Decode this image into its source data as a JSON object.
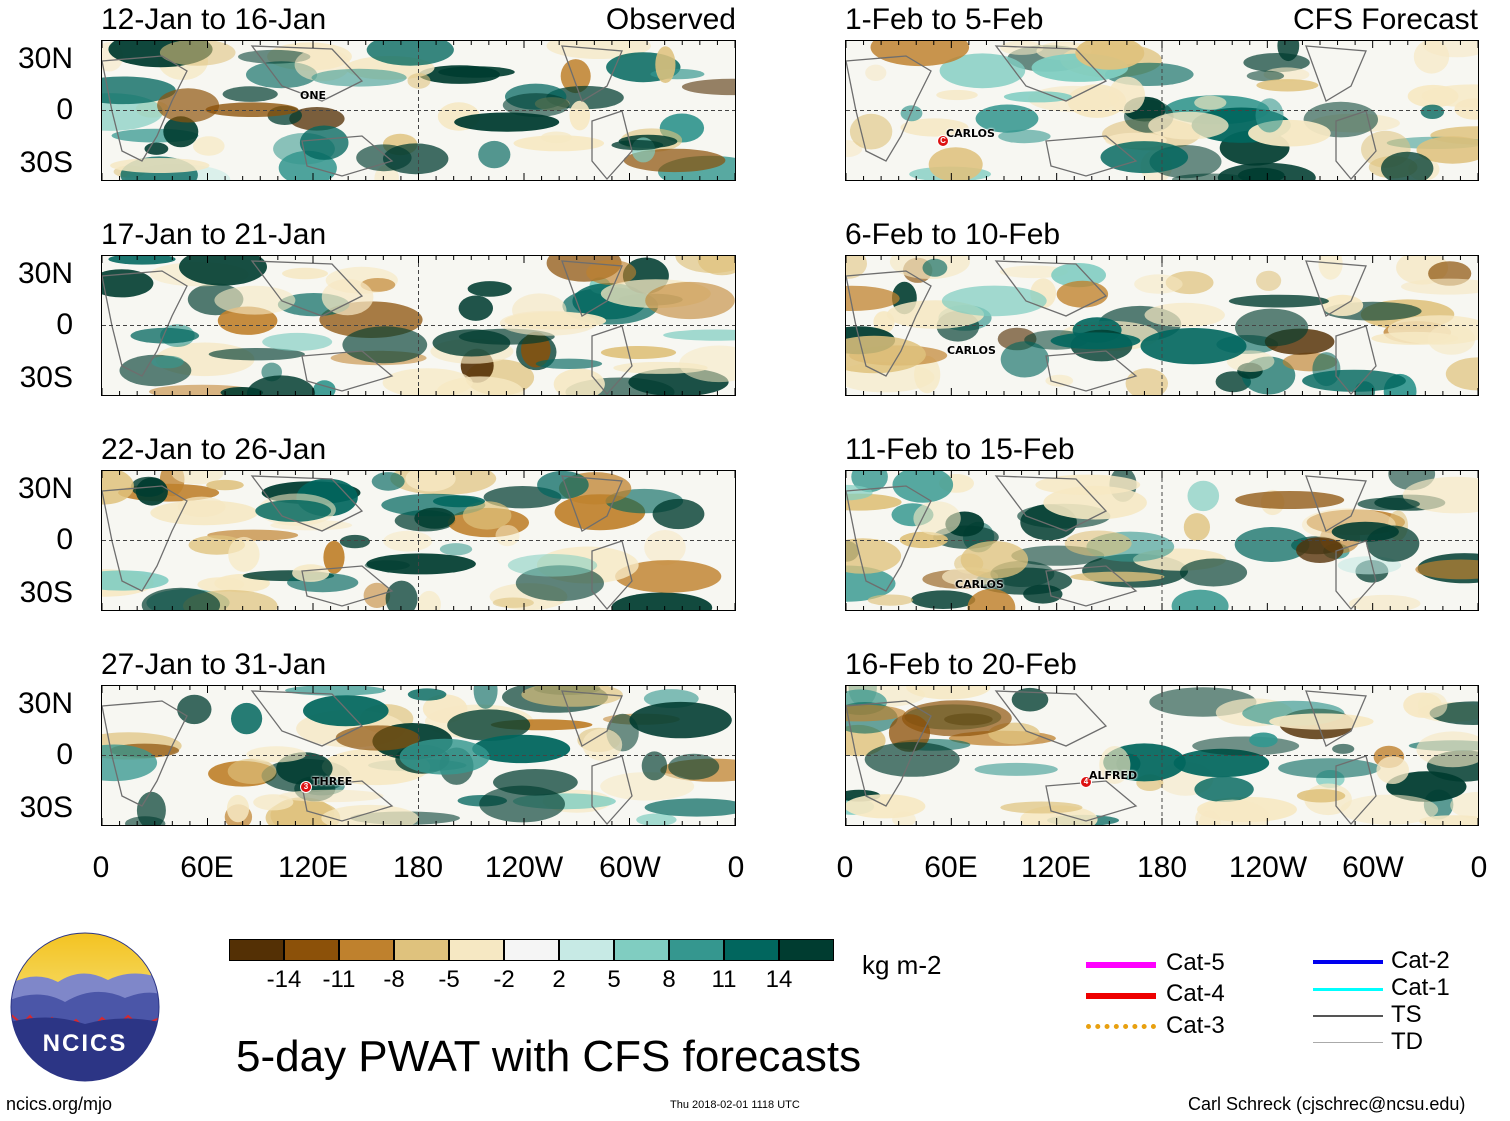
{
  "title": "5-day PWAT with CFS forecasts",
  "header_tags": {
    "observed": "Observed",
    "forecast": "CFS Forecast"
  },
  "panels_observed": [
    {
      "title": "12-Jan to 16-Jan",
      "storms": [
        {
          "name": "ONE"
        }
      ]
    },
    {
      "title": "17-Jan to 21-Jan",
      "storms": []
    },
    {
      "title": "22-Jan to 26-Jan",
      "storms": []
    },
    {
      "title": "27-Jan to 31-Jan",
      "storms": [
        {
          "name": "THREE",
          "category": "3"
        }
      ]
    }
  ],
  "panels_forecast": [
    {
      "title": "1-Feb to 5-Feb",
      "storms": [
        {
          "name": "CARLOS",
          "category": "C"
        }
      ]
    },
    {
      "title": "6-Feb to 10-Feb",
      "storms": [
        {
          "name": "CARLOS"
        }
      ]
    },
    {
      "title": "11-Feb to 15-Feb",
      "storms": [
        {
          "name": "CARLOS"
        }
      ]
    },
    {
      "title": "16-Feb to 20-Feb",
      "storms": [
        {
          "name": "ALFRED",
          "category": "4"
        }
      ]
    }
  ],
  "lat_labels": [
    "30N",
    "0",
    "30S"
  ],
  "lon_labels": [
    "0",
    "60E",
    "120E",
    "180",
    "120W",
    "60W",
    "0"
  ],
  "colorbar": {
    "unit": "kg m-2",
    "tick_labels": [
      "-14",
      "-11",
      "-8",
      "-5",
      "-2",
      "2",
      "5",
      "8",
      "11",
      "14"
    ],
    "colors": [
      "#543005",
      "#8c5109",
      "#bf812d",
      "#dfc27d",
      "#f6e8c3",
      "#f5f5f5",
      "#c7eae5",
      "#80cdc1",
      "#35978f",
      "#01665e",
      "#003c30"
    ]
  },
  "track_legend": [
    {
      "label": "Cat-5",
      "color": "#ff00ff"
    },
    {
      "label": "Cat-4",
      "color": "#ee0000"
    },
    {
      "label": "Cat-3",
      "color": "#e8a010"
    },
    {
      "label": "Cat-2",
      "color": "#0000ee"
    },
    {
      "label": "Cat-1",
      "color": "#00ffff"
    },
    {
      "label": "TS",
      "color": "#555555"
    },
    {
      "label": "TD",
      "color": "#aaaaaa"
    }
  ],
  "logo_text": "NCICS",
  "footer": {
    "url": "ncics.org/mjo",
    "timestamp": "Thu 2018-02-01 1118 UTC",
    "author": "Carl Schreck (cjschrec@ncsu.edu)"
  }
}
